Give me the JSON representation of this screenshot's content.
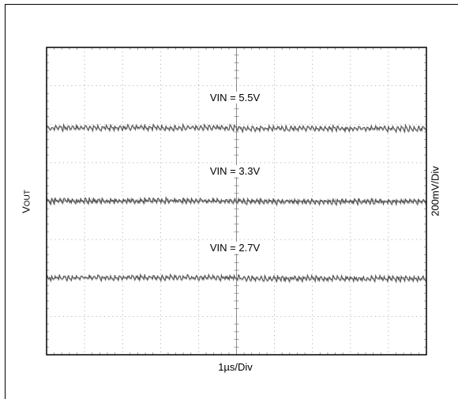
{
  "chart_data": {
    "type": "line",
    "title": "",
    "xlabel": "1µs/Div",
    "ylabel_main": "V",
    "ylabel_sub": "OUT",
    "ylabel_right": "200mV/Div",
    "grid": true,
    "divisions": {
      "x": 10,
      "y": 8
    },
    "x_per_div_us": 1,
    "y_per_div_mV": 200,
    "series": [
      {
        "name": "VIN = 5.5V",
        "level_div": 5.9,
        "ripple_div": 0.06
      },
      {
        "name": "VIN = 3.3V",
        "level_div": 4.0,
        "ripple_div": 0.06
      },
      {
        "name": "VIN = 2.7V",
        "level_div": 2.0,
        "ripple_div": 0.06
      }
    ]
  },
  "colors": {
    "grid": "#a0a0a0",
    "axis": "#8a8a8a",
    "trace": "#555555",
    "frame": "#000000"
  }
}
